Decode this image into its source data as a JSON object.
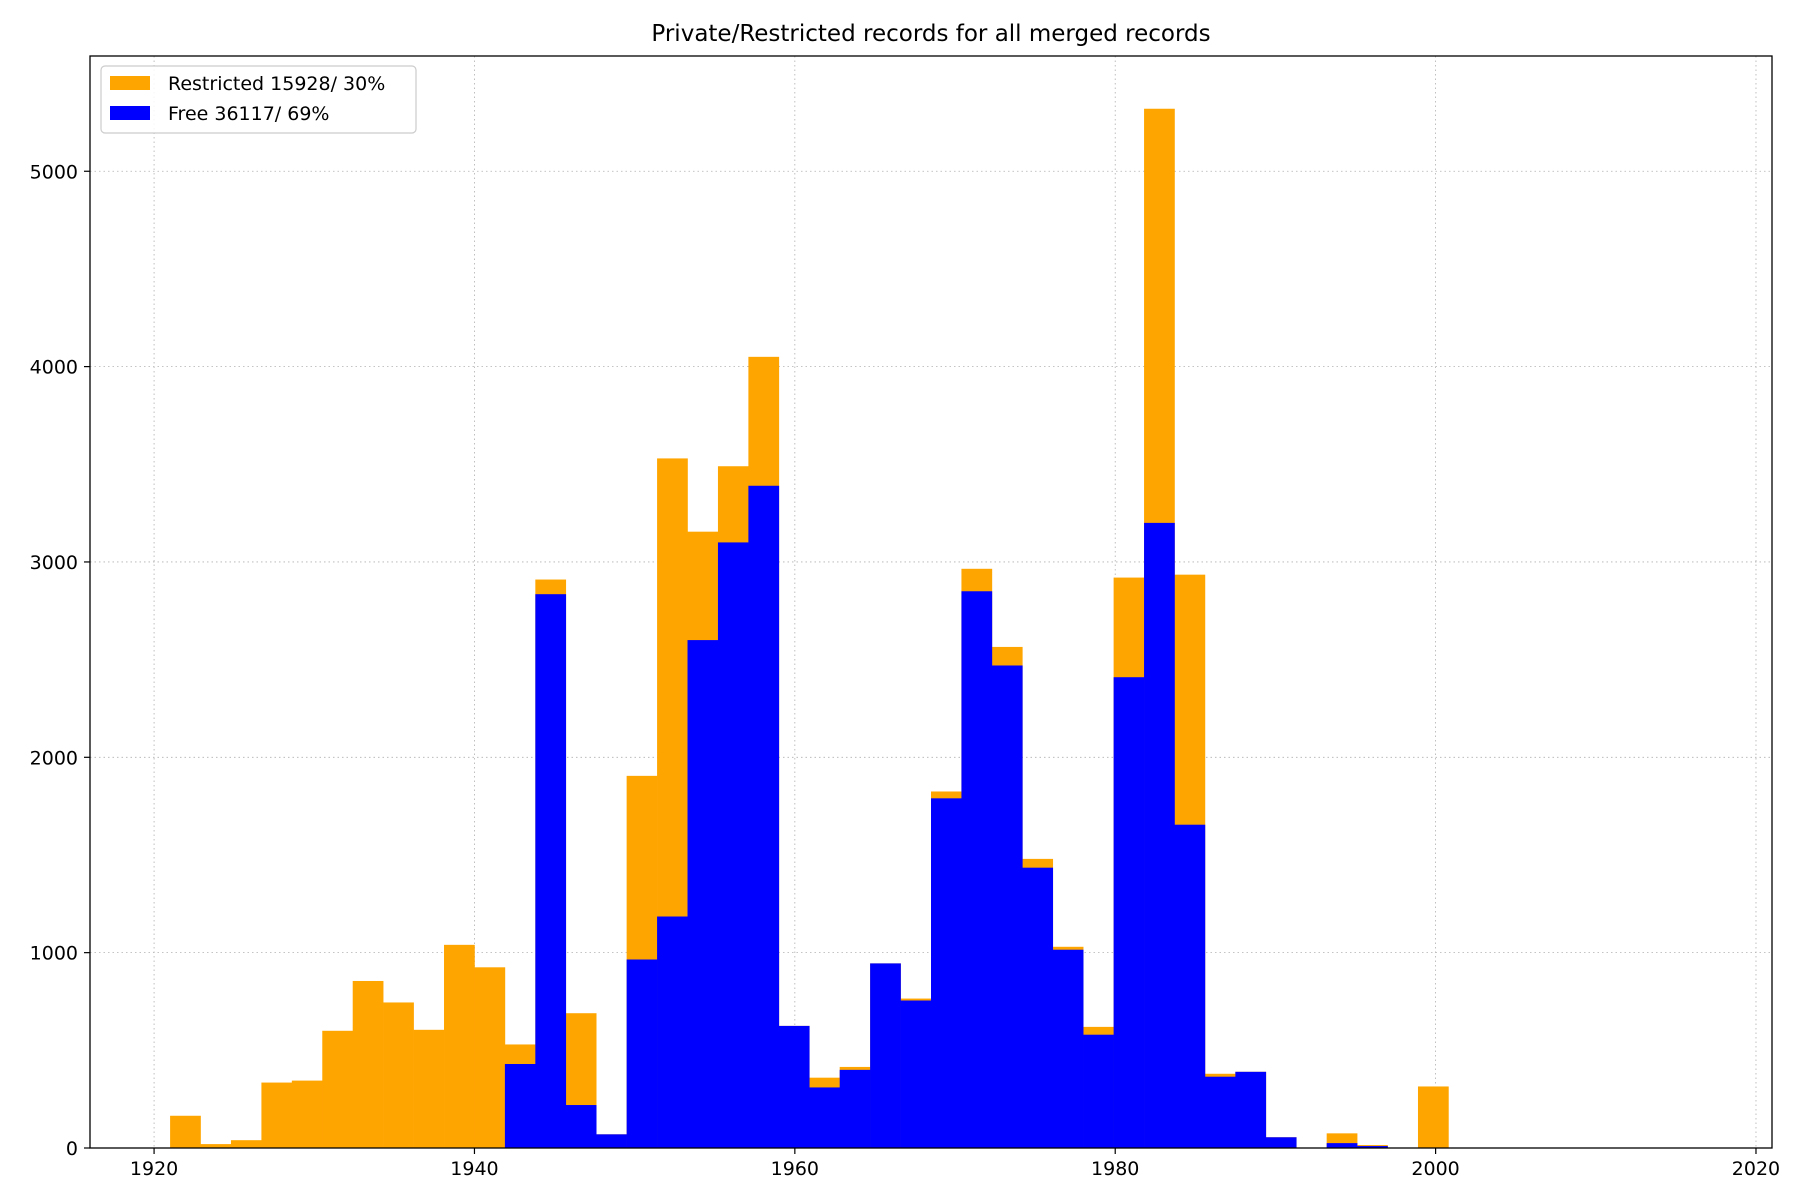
{
  "chart_data": {
    "type": "bar",
    "title": "Private/Restricted records for all merged records",
    "xlabel": "",
    "ylabel": "",
    "xlim": [
      1916,
      2021
    ],
    "ylim": [
      0,
      5590
    ],
    "xticks": [
      1920,
      1940,
      1960,
      1980,
      2000,
      2020
    ],
    "yticks": [
      0,
      1000,
      2000,
      3000,
      4000,
      5000
    ],
    "grid": true,
    "stacked_overlay": true,
    "legend_placement": "top-left",
    "bin_width": 1.9,
    "bins": [
      1921.0,
      1922.9,
      1924.8,
      1926.7,
      1928.6,
      1930.5,
      1932.4,
      1934.3,
      1936.2,
      1938.1,
      1940.0,
      1941.9,
      1943.8,
      1945.7,
      1947.6,
      1949.5,
      1951.4,
      1953.3,
      1955.2,
      1957.1,
      1959.0,
      1960.9,
      1962.8,
      1964.7,
      1966.6,
      1968.5,
      1970.4,
      1972.3,
      1974.2,
      1976.1,
      1978.0,
      1979.9,
      1981.8,
      1983.7,
      1985.6,
      1987.5,
      1989.4,
      1991.3,
      1993.2,
      1995.1,
      1997.0,
      1998.9
    ],
    "series": [
      {
        "name": "Restricted 15928/ 30%",
        "color": "#ffa500",
        "values": [
          165,
          20,
          40,
          335,
          345,
          600,
          855,
          745,
          605,
          1040,
          925,
          530,
          2910,
          690,
          70,
          1905,
          3530,
          3155,
          3490,
          4050,
          625,
          360,
          415,
          945,
          765,
          1825,
          2965,
          2565,
          1480,
          1030,
          620,
          2920,
          5320,
          2935,
          380,
          390,
          55,
          0,
          75,
          15,
          0,
          315
        ]
      },
      {
        "name": "Free 36117/ 69%",
        "color": "#0000ff",
        "values": [
          0,
          0,
          0,
          0,
          0,
          0,
          0,
          0,
          0,
          0,
          0,
          430,
          2835,
          220,
          70,
          965,
          1185,
          2600,
          3100,
          3390,
          625,
          310,
          400,
          945,
          755,
          1790,
          2850,
          2470,
          1435,
          1015,
          580,
          2410,
          3200,
          1655,
          365,
          390,
          55,
          0,
          25,
          10,
          0,
          0
        ]
      }
    ]
  }
}
